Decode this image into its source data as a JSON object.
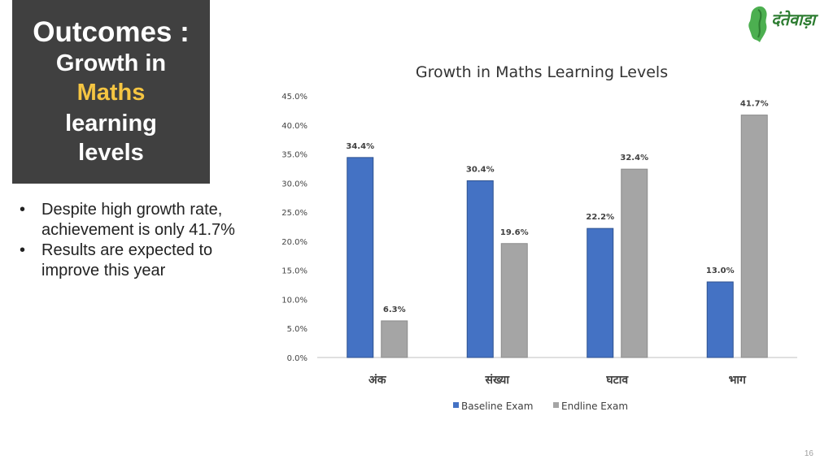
{
  "slide": {
    "title_line1": "Outcomes :",
    "title_line2": "Growth in",
    "title_line3": "Maths",
    "title_line4": "learning",
    "title_line5": "levels",
    "bullets": [
      "Despite high growth rate, achievement is only 41.7%",
      "Results are expected to improve this year"
    ],
    "logo_text": "दंतेवाड़ा",
    "page_number": "16",
    "colors": {
      "title_bg": "#404040",
      "highlight": "#f5c542",
      "logo_green": "#2e7d32"
    }
  },
  "chart_data": {
    "type": "bar",
    "title": "Growth in Maths Learning Levels",
    "categories": [
      "अंक",
      "संख्या",
      "घटाव",
      "भाग"
    ],
    "series": [
      {
        "name": "Baseline Exam",
        "values": [
          34.4,
          30.4,
          22.2,
          13.0
        ],
        "color": "#4472c4"
      },
      {
        "name": "Endline Exam",
        "values": [
          6.3,
          19.6,
          32.4,
          41.7
        ],
        "color": "#a5a5a5"
      }
    ],
    "data_labels": [
      [
        "34.4%",
        "30.4%",
        "22.2%",
        "13.0%"
      ],
      [
        "6.3%",
        "19.6%",
        "32.4%",
        "41.7%"
      ]
    ],
    "ylim": [
      0,
      45
    ],
    "yticks": [
      "0.0%",
      "5.0%",
      "10.0%",
      "15.0%",
      "20.0%",
      "25.0%",
      "30.0%",
      "35.0%",
      "40.0%",
      "45.0%"
    ],
    "grid": false,
    "legend": "bottom"
  }
}
